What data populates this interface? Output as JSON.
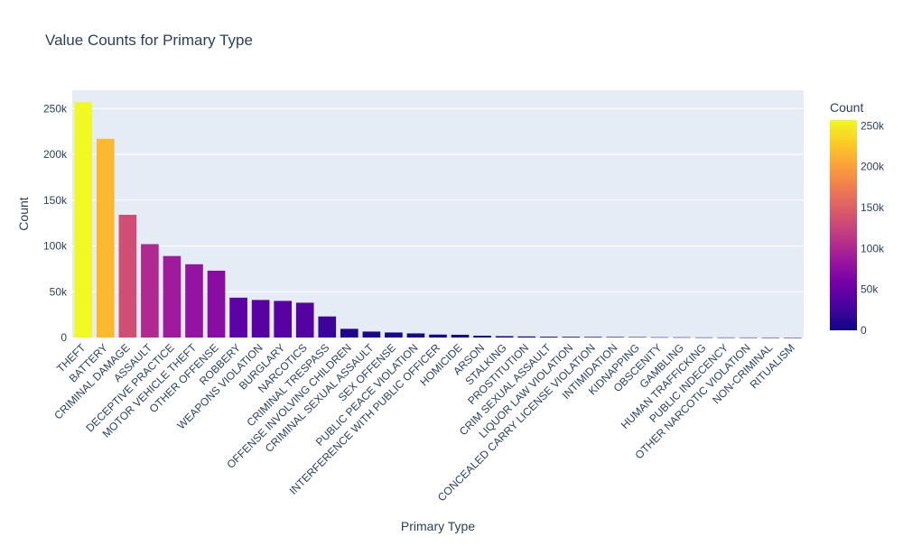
{
  "chart_data": {
    "type": "bar",
    "title": "Value Counts for Primary Type",
    "xlabel": "Primary Type",
    "ylabel": "Count",
    "categories": [
      "THEFT",
      "BATTERY",
      "CRIMINAL DAMAGE",
      "ASSAULT",
      "DECEPTIVE PRACTICE",
      "MOTOR VEHICLE THEFT",
      "OTHER OFFENSE",
      "ROBBERY",
      "WEAPONS VIOLATION",
      "BURGLARY",
      "NARCOTICS",
      "CRIMINAL TRESPASS",
      "OFFENSE INVOLVING CHILDREN",
      "CRIMINAL SEXUAL ASSAULT",
      "SEX OFFENSE",
      "PUBLIC PEACE VIOLATION",
      "INTERFERENCE WITH PUBLIC OFFICER",
      "HOMICIDE",
      "ARSON",
      "STALKING",
      "PROSTITUTION",
      "CRIM SEXUAL ASSAULT",
      "LIQUOR LAW VIOLATION",
      "CONCEALED CARRY LICENSE VIOLATION",
      "INTIMIDATION",
      "KIDNAPPING",
      "OBSCENITY",
      "GAMBLING",
      "HUMAN TRAFFICKING",
      "PUBLIC INDECENCY",
      "OTHER NARCOTIC VIOLATION",
      "NON-CRIMINAL",
      "RITUALISM"
    ],
    "values": [
      257000,
      217000,
      134000,
      102000,
      89000,
      80000,
      73000,
      43500,
      41000,
      40000,
      38000,
      23000,
      9500,
      6500,
      5500,
      4500,
      3200,
      3000,
      2000,
      1500,
      1200,
      900,
      800,
      700,
      600,
      500,
      300,
      250,
      150,
      100,
      80,
      40,
      10
    ],
    "ylim": [
      0,
      270000
    ],
    "yticks": [
      0,
      50000,
      100000,
      150000,
      200000,
      250000
    ],
    "ytick_labels": [
      "0",
      "50k",
      "100k",
      "150k",
      "200k",
      "250k"
    ],
    "grid": true,
    "colorbar": {
      "title": "Count",
      "range": [
        0,
        257000
      ],
      "ticks": [
        0,
        50000,
        100000,
        150000,
        200000,
        250000
      ],
      "tick_labels": [
        "0",
        "50k",
        "100k",
        "150k",
        "200k",
        "250k"
      ],
      "colorscale": [
        "#0d0887",
        "#46039f",
        "#7201a8",
        "#9c179e",
        "#bd3786",
        "#d8576b",
        "#ed7953",
        "#fb9f3a",
        "#fdca26",
        "#f0f921"
      ]
    }
  }
}
